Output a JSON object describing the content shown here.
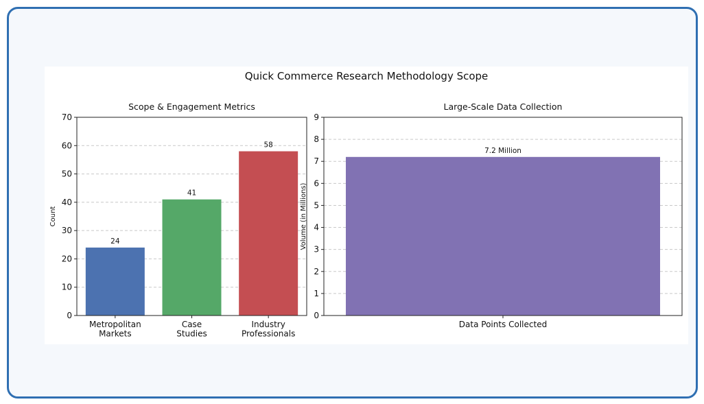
{
  "title": "Quick Commerce Research Methodology Scope",
  "chart_data": [
    {
      "type": "bar",
      "title": "Scope & Engagement Metrics",
      "categories": [
        "Metropolitan\nMarkets",
        "Case\nStudies",
        "Industry\nProfessionals"
      ],
      "values": [
        24,
        41,
        58
      ],
      "value_labels": [
        "24",
        "41",
        "58"
      ],
      "colors": [
        "#4c72b0",
        "#55a868",
        "#c44e52"
      ],
      "xlabel": "",
      "ylabel": "Count",
      "ylim": [
        0,
        70
      ],
      "yticks": [
        0,
        10,
        20,
        30,
        40,
        50,
        60,
        70
      ],
      "grid": "y-dashed"
    },
    {
      "type": "bar",
      "title": "Large-Scale Data Collection",
      "categories": [
        "Data Points Collected"
      ],
      "values": [
        7.2
      ],
      "value_labels": [
        "7.2 Million"
      ],
      "colors": [
        "#8172b3"
      ],
      "xlabel": "",
      "ylabel": "Volume (in Millions)",
      "ylim": [
        0,
        9
      ],
      "yticks": [
        0,
        1,
        2,
        3,
        4,
        5,
        6,
        7,
        8,
        9
      ],
      "grid": "y-dashed"
    }
  ]
}
